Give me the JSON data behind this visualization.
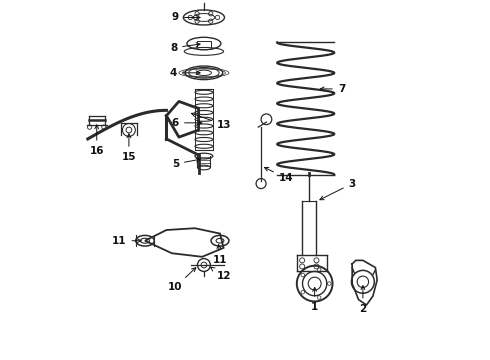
{
  "bg_color": "#ffffff",
  "line_color": "#2a2a2a",
  "label_color": "#111111",
  "font_size": 7.5,
  "labels": {
    "9": [
      0.385,
      0.955,
      0.315,
      0.955
    ],
    "8": [
      0.385,
      0.87,
      0.315,
      0.87
    ],
    "4": [
      0.385,
      0.8,
      0.315,
      0.8
    ],
    "6": [
      0.385,
      0.66,
      0.315,
      0.66
    ],
    "5": [
      0.385,
      0.545,
      0.315,
      0.545
    ],
    "7": [
      0.76,
      0.77,
      0.83,
      0.77
    ],
    "3": [
      0.81,
      0.56,
      0.88,
      0.59
    ],
    "14": [
      0.56,
      0.54,
      0.62,
      0.51
    ],
    "13": [
      0.44,
      0.64,
      0.5,
      0.64
    ],
    "15": [
      0.175,
      0.6,
      0.175,
      0.54
    ],
    "16": [
      0.085,
      0.6,
      0.085,
      0.54
    ],
    "11a": [
      0.23,
      0.31,
      0.16,
      0.31
    ],
    "11b": [
      0.42,
      0.295,
      0.42,
      0.24
    ],
    "10": [
      0.29,
      0.22,
      0.275,
      0.155
    ],
    "12": [
      0.415,
      0.215,
      0.455,
      0.185
    ],
    "1": [
      0.7,
      0.185,
      0.7,
      0.125
    ],
    "2": [
      0.83,
      0.155,
      0.83,
      0.09
    ]
  }
}
